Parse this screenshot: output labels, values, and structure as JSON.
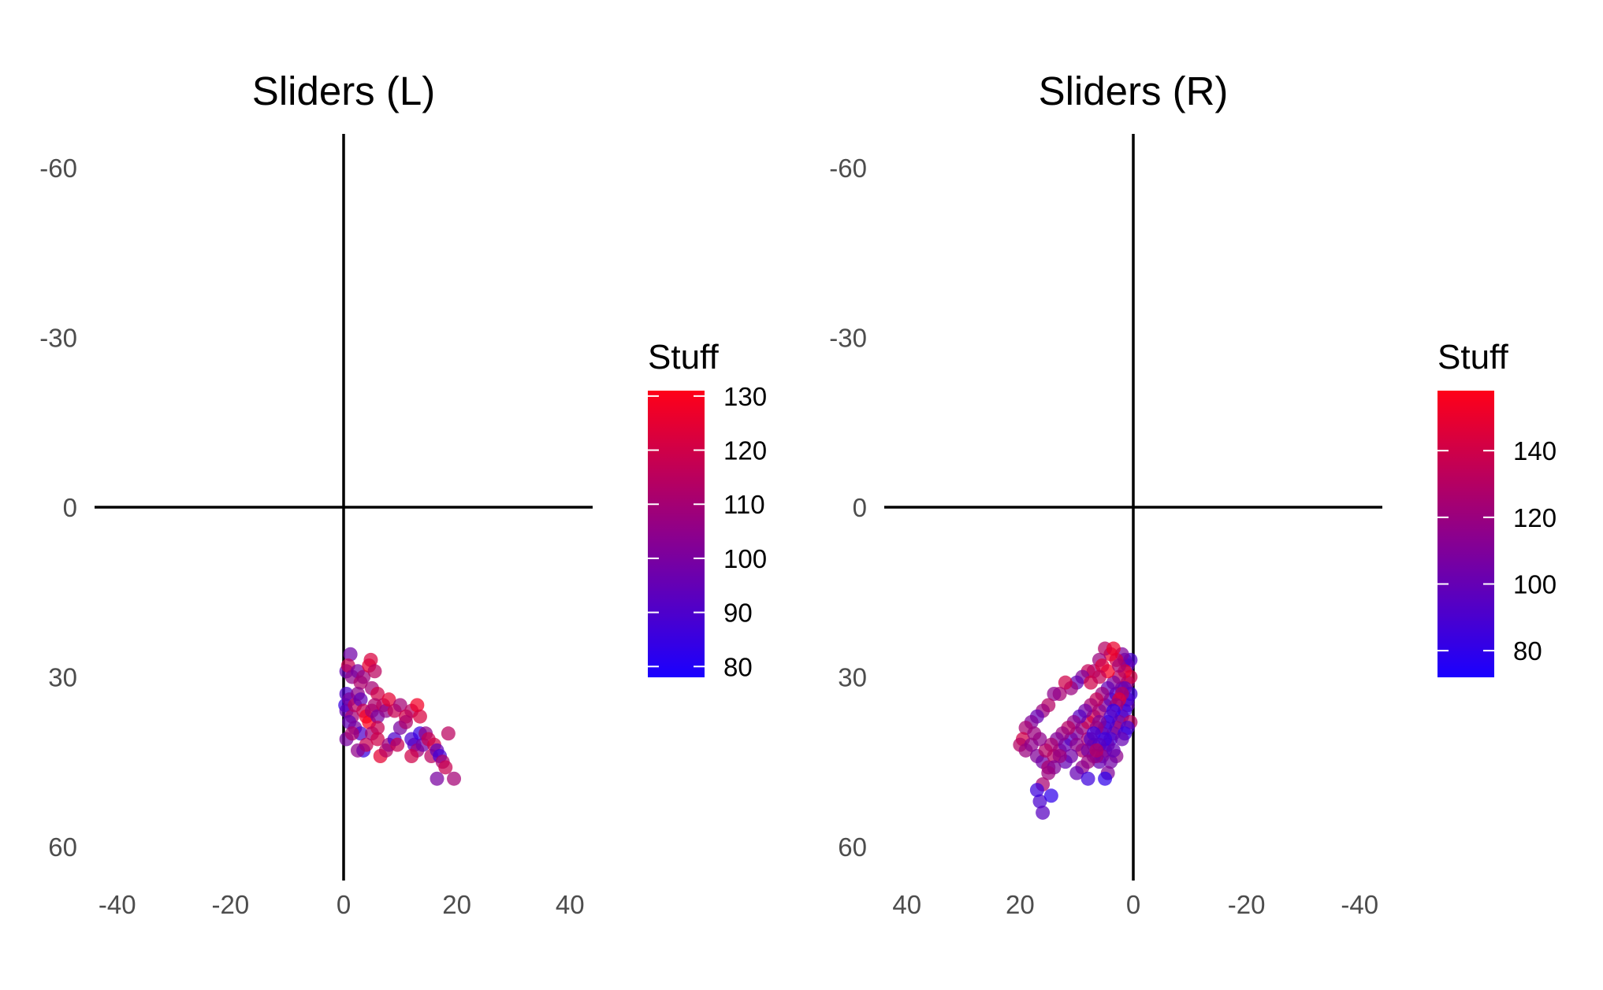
{
  "chart_data": [
    {
      "type": "scatter",
      "title": "Sliders (L)",
      "xlabel": "",
      "ylabel": "",
      "xlim": [
        -44,
        44
      ],
      "ylim": [
        66,
        -66
      ],
      "x_reversed": false,
      "y_reversed": true,
      "xticks": [
        -40,
        -20,
        0,
        20,
        40
      ],
      "yticks": [
        -60,
        -30,
        0,
        30,
        60
      ],
      "reference_lines": {
        "x": 0,
        "y": 0
      },
      "grid": false,
      "legend": {
        "title": "Stuff",
        "position": "right",
        "type": "colorbar",
        "range": [
          78,
          131
        ],
        "ticks": [
          80,
          90,
          100,
          110,
          120,
          130
        ],
        "low_color": "#1a00ff",
        "high_color": "#ff0018"
      },
      "series": [
        {
          "color_by": "Stuff",
          "points": [
            [
              0.5,
              29,
              95
            ],
            [
              1.2,
              26,
              98
            ],
            [
              0.8,
              28,
              118
            ],
            [
              1.5,
              30,
              105
            ],
            [
              2.5,
              29,
              100
            ],
            [
              3,
              31,
              112
            ],
            [
              3.5,
              30,
              108
            ],
            [
              4.5,
              28,
              125
            ],
            [
              4.8,
              27,
              122
            ],
            [
              5.5,
              29,
              115
            ],
            [
              5,
              32,
              110
            ],
            [
              6,
              33,
              120
            ],
            [
              0.5,
              33,
              90
            ],
            [
              0.3,
              35,
              85
            ],
            [
              0.5,
              36,
              95
            ],
            [
              1,
              34,
              100
            ],
            [
              1.5,
              37,
              110
            ],
            [
              2,
              35,
              115
            ],
            [
              2.5,
              33,
              105
            ],
            [
              3,
              34,
              95
            ],
            [
              3.5,
              36,
              118
            ],
            [
              4,
              37,
              128
            ],
            [
              4.5,
              38,
              130
            ],
            [
              5,
              36,
              110
            ],
            [
              5.5,
              35,
              112
            ],
            [
              6,
              37,
              100
            ],
            [
              7,
              35,
              115
            ],
            [
              7.5,
              36,
              105
            ],
            [
              8,
              34,
              125
            ],
            [
              9,
              36,
              118
            ],
            [
              10,
              35,
              110
            ],
            [
              11,
              37,
              120
            ],
            [
              12,
              36,
              115
            ],
            [
              13,
              35,
              128
            ],
            [
              13.5,
              37,
              122
            ],
            [
              1,
              38,
              95
            ],
            [
              2,
              39,
              100
            ],
            [
              3,
              40,
              90
            ],
            [
              3.5,
              43,
              85
            ],
            [
              4,
              42,
              118
            ],
            [
              5,
              40,
              110
            ],
            [
              6,
              41,
              120
            ],
            [
              6.5,
              44,
              125
            ],
            [
              7.5,
              43,
              115
            ],
            [
              8,
              42,
              108
            ],
            [
              9,
              41,
              90
            ],
            [
              9.5,
              42,
              118
            ],
            [
              0.5,
              41,
              100
            ],
            [
              1.5,
              40,
              112
            ],
            [
              2.5,
              43,
              105
            ],
            [
              12,
              41,
              88
            ],
            [
              12.5,
              42,
              92
            ],
            [
              13,
              43,
              110
            ],
            [
              13.5,
              40,
              85
            ],
            [
              14,
              42,
              98
            ],
            [
              14.5,
              40,
              105
            ],
            [
              15,
              41,
              118
            ],
            [
              15.5,
              44,
              115
            ],
            [
              16,
              42,
              120
            ],
            [
              16.5,
              43,
              95
            ],
            [
              17,
              44,
              88
            ],
            [
              17.5,
              45,
              112
            ],
            [
              18,
              46,
              118
            ],
            [
              18.5,
              40,
              115
            ],
            [
              19.5,
              48,
              110
            ],
            [
              16.5,
              48,
              100
            ],
            [
              12,
              44,
              120
            ],
            [
              10,
              39,
              100
            ],
            [
              11,
              38,
              112
            ],
            [
              6,
              39,
              118
            ]
          ]
        }
      ]
    },
    {
      "type": "scatter",
      "title": "Sliders (R)",
      "xlabel": "",
      "ylabel": "",
      "xlim": [
        -44,
        44
      ],
      "ylim": [
        66,
        -66
      ],
      "x_reversed": true,
      "y_reversed": true,
      "xticks": [
        40,
        20,
        0,
        -20,
        -40
      ],
      "yticks": [
        -60,
        -30,
        0,
        30,
        60
      ],
      "reference_lines": {
        "x": 0,
        "y": 0
      },
      "grid": false,
      "legend": {
        "title": "Stuff",
        "position": "right",
        "type": "colorbar",
        "range": [
          72,
          158
        ],
        "ticks": [
          80,
          100,
          120,
          140
        ],
        "low_color": "#1a00ff",
        "high_color": "#ff0018"
      },
      "series": [
        {
          "color_by": "Stuff",
          "points": [
            [
              0.5,
              27,
              90
            ],
            [
              1,
              28,
              100
            ],
            [
              1.5,
              27,
              95
            ],
            [
              2,
              26,
              110
            ],
            [
              3,
              27,
              140
            ],
            [
              4,
              26,
              150
            ],
            [
              5,
              25,
              130
            ],
            [
              6,
              27,
              120
            ],
            [
              7,
              29,
              125
            ],
            [
              8,
              29,
              135
            ],
            [
              9,
              30,
              110
            ],
            [
              10,
              31,
              100
            ],
            [
              11,
              32,
              120
            ],
            [
              12,
              31,
              140
            ],
            [
              13,
              33,
              125
            ],
            [
              14,
              33,
              115
            ],
            [
              15,
              35,
              130
            ],
            [
              16,
              36,
              120
            ],
            [
              17,
              37,
              100
            ],
            [
              18,
              38,
              110
            ],
            [
              19,
              39,
              125
            ],
            [
              19.5,
              41,
              140
            ],
            [
              20,
              42,
              130
            ],
            [
              19,
              43,
              120
            ],
            [
              18,
              42,
              115
            ],
            [
              17,
              44,
              110
            ],
            [
              16,
              45,
              105
            ],
            [
              15,
              46,
              125
            ],
            [
              14,
              44,
              130
            ],
            [
              13,
              43,
              120
            ],
            [
              12,
              42,
              100
            ],
            [
              11,
              41,
              95
            ],
            [
              10,
              40,
              110
            ],
            [
              9,
              39,
              120
            ],
            [
              8,
              38,
              135
            ],
            [
              7,
              37,
              140
            ],
            [
              6,
              36,
              125
            ],
            [
              5,
              35,
              110
            ],
            [
              4,
              34,
              100
            ],
            [
              3,
              33,
              90
            ],
            [
              2,
              32,
              95
            ],
            [
              1,
              31,
              120
            ],
            [
              0.5,
              30,
              140
            ],
            [
              1.5,
              29,
              150
            ],
            [
              2.5,
              30,
              130
            ],
            [
              3.5,
              31,
              110
            ],
            [
              4.5,
              32,
              100
            ],
            [
              5.5,
              33,
              120
            ],
            [
              6.5,
              34,
              135
            ],
            [
              7.5,
              35,
              125
            ],
            [
              8.5,
              36,
              105
            ],
            [
              9.5,
              37,
              95
            ],
            [
              10.5,
              38,
              115
            ],
            [
              11.5,
              39,
              130
            ],
            [
              12.5,
              40,
              120
            ],
            [
              13.5,
              41,
              110
            ],
            [
              14.5,
              42,
              125
            ],
            [
              15.5,
              43,
              130
            ],
            [
              16.5,
              41,
              115
            ],
            [
              17.5,
              40,
              120
            ],
            [
              1,
              35,
              100
            ],
            [
              1.5,
              36,
              85
            ],
            [
              2,
              37,
              95
            ],
            [
              2.5,
              38,
              110
            ],
            [
              3,
              39,
              120
            ],
            [
              3.5,
              40,
              105
            ],
            [
              4,
              41,
              90
            ],
            [
              4.5,
              42,
              100
            ],
            [
              5,
              43,
              95
            ],
            [
              5.5,
              44,
              115
            ],
            [
              6,
              45,
              100
            ],
            [
              6.5,
              44,
              120
            ],
            [
              7,
              42,
              110
            ],
            [
              8,
              41,
              125
            ],
            [
              9,
              43,
              130
            ],
            [
              10,
              42,
              115
            ],
            [
              11,
              44,
              105
            ],
            [
              12,
              45,
              100
            ],
            [
              13,
              44,
              120
            ],
            [
              14,
              46,
              110
            ],
            [
              0.5,
              33,
              85
            ],
            [
              1,
              34,
              90
            ],
            [
              1.5,
              32,
              100
            ],
            [
              2,
              33,
              130
            ],
            [
              2.5,
              34,
              145
            ],
            [
              3,
              35,
              120
            ],
            [
              3.5,
              36,
              80
            ],
            [
              4,
              37,
              95
            ],
            [
              4.5,
              38,
              85
            ],
            [
              5,
              39,
              90
            ],
            [
              5.5,
              40,
              100
            ],
            [
              6,
              38,
              110
            ],
            [
              6.5,
              39,
              120
            ],
            [
              7,
              40,
              85
            ],
            [
              7.5,
              41,
              95
            ],
            [
              8,
              43,
              105
            ],
            [
              0.5,
              38,
              130
            ],
            [
              1,
              39,
              90
            ],
            [
              1.5,
              40,
              85
            ],
            [
              2,
              41,
              100
            ],
            [
              3,
              44,
              115
            ],
            [
              4,
              45,
              105
            ],
            [
              4.5,
              47,
              110
            ],
            [
              3.5,
              43,
              100
            ],
            [
              5,
              41,
              85
            ],
            [
              6,
              42,
              95
            ],
            [
              7,
              44,
              110
            ],
            [
              8,
              45,
              120
            ],
            [
              9,
              46,
              115
            ],
            [
              10,
              47,
              100
            ],
            [
              15,
              47,
              120
            ],
            [
              16,
              49,
              125
            ],
            [
              16.5,
              52,
              90
            ],
            [
              17,
              50,
              85
            ],
            [
              16,
              54,
              95
            ],
            [
              14.5,
              51,
              80
            ],
            [
              8,
              48,
              85
            ],
            [
              5,
              48,
              80
            ],
            [
              6.5,
              43,
              130
            ],
            [
              7.5,
              31,
              140
            ],
            [
              4.5,
              29,
              155
            ],
            [
              5.5,
              28,
              145
            ],
            [
              2.5,
              28,
              125
            ],
            [
              3.5,
              25,
              150
            ],
            [
              6,
              30,
              135
            ]
          ]
        }
      ]
    }
  ]
}
